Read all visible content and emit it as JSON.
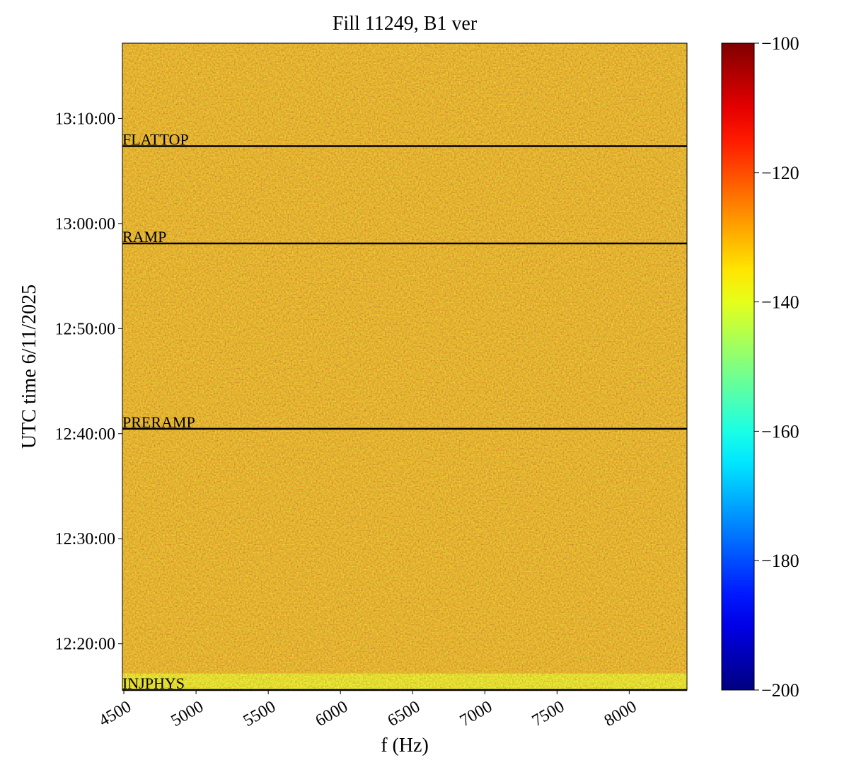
{
  "chart_data": {
    "type": "heatmap",
    "title": "Fill 11249, B1 ver",
    "xlabel": "f (Hz)",
    "ylabel": "UTC time 6/11/2025",
    "xlim": [
      4490,
      8400
    ],
    "xticks": [
      4500,
      5000,
      5500,
      6000,
      6500,
      7000,
      7500,
      8000
    ],
    "ylim": [
      44136,
      47830
    ],
    "yticks": [
      {
        "value": 44400,
        "label": "12:20:00"
      },
      {
        "value": 45000,
        "label": "12:30:00"
      },
      {
        "value": 45600,
        "label": "12:40:00"
      },
      {
        "value": 46200,
        "label": "12:50:00"
      },
      {
        "value": 46800,
        "label": "13:00:00"
      },
      {
        "value": 47400,
        "label": "13:10:00"
      }
    ],
    "zlim": [
      -200,
      -100
    ],
    "zticks": [
      {
        "value": -100,
        "label": "−100"
      },
      {
        "value": -120,
        "label": "−120"
      },
      {
        "value": -140,
        "label": "−140"
      },
      {
        "value": -160,
        "label": "−160"
      },
      {
        "value": -180,
        "label": "−180"
      },
      {
        "value": -200,
        "label": "−200"
      }
    ],
    "colormap": "jet",
    "bands": [
      {
        "ylim": [
          44136,
          44230
        ],
        "level": -137
      },
      {
        "ylim": [
          44230,
          47830
        ],
        "level": -128
      }
    ],
    "events": [
      {
        "label": "INJPHYS",
        "y": 44136
      },
      {
        "label": "PRERAMP",
        "y": 45628
      },
      {
        "label": "RAMP",
        "y": 46686
      },
      {
        "label": "FLATTOP",
        "y": 47242
      }
    ]
  }
}
